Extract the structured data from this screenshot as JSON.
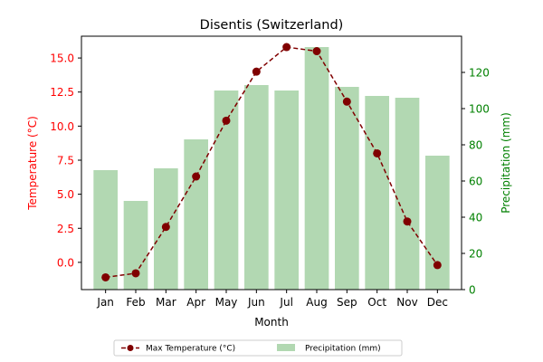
{
  "chart_data": {
    "type": "bar+line",
    "title": "Disentis (Switzerland)",
    "xlabel": "Month",
    "categories": [
      "Jan",
      "Feb",
      "Mar",
      "Apr",
      "May",
      "Jun",
      "Jul",
      "Aug",
      "Sep",
      "Oct",
      "Nov",
      "Dec"
    ],
    "left_axis": {
      "label": "Temperature (°C)",
      "color": "#ff0000",
      "ylim": [
        -2.0,
        16.6
      ],
      "ticks": [
        0.0,
        2.5,
        5.0,
        7.5,
        10.0,
        12.5,
        15.0
      ],
      "tick_labels": [
        "0.0",
        "2.5",
        "5.0",
        "7.5",
        "10.0",
        "12.5",
        "15.0"
      ]
    },
    "right_axis": {
      "label": "Precipitation (mm)",
      "color": "#008000",
      "ylim": [
        0,
        140
      ],
      "ticks": [
        0,
        20,
        40,
        60,
        80,
        100,
        120
      ],
      "tick_labels": [
        "0",
        "20",
        "40",
        "60",
        "80",
        "100",
        "120"
      ]
    },
    "series": [
      {
        "name": "Max Temperature (°C)",
        "type": "line",
        "axis": "left",
        "color": "#800000",
        "linestyle": "dashed",
        "marker": "circle",
        "values": [
          -1.1,
          -0.8,
          2.6,
          6.3,
          10.4,
          14.0,
          15.8,
          15.5,
          11.8,
          8.0,
          3.0,
          -0.2
        ]
      },
      {
        "name": "Precipitation (mm)",
        "type": "bar",
        "axis": "right",
        "color": "#b2d8b2",
        "values": [
          66,
          49,
          67,
          83,
          110,
          113,
          110,
          134,
          112,
          107,
          106,
          74
        ]
      }
    ],
    "legend": {
      "placement": "bottom-center",
      "columns": 2
    },
    "grid": false
  }
}
